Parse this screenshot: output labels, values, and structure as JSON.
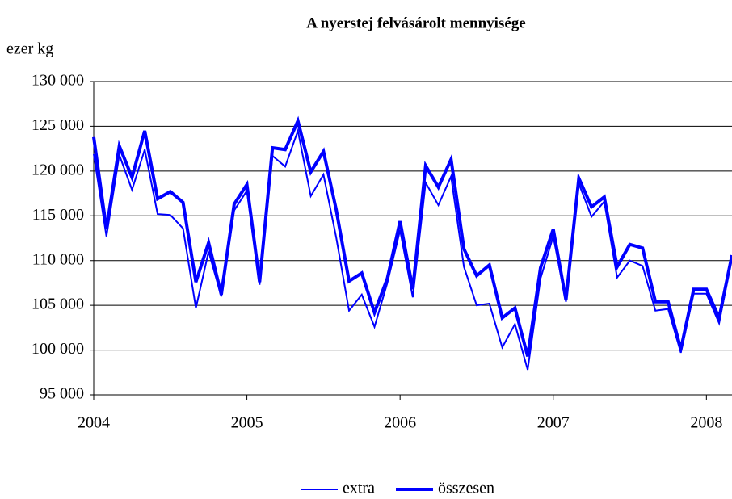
{
  "chart_data": {
    "type": "line",
    "title": "A nyerstej felvásárolt mennyisége",
    "ylabel": "ezer kg",
    "x": [
      2004,
      2004.083,
      2004.167,
      2004.25,
      2004.333,
      2004.417,
      2004.5,
      2004.583,
      2004.667,
      2004.75,
      2004.833,
      2004.917,
      2005,
      2005.083,
      2005.167,
      2005.25,
      2005.333,
      2005.417,
      2005.5,
      2005.583,
      2005.667,
      2005.75,
      2005.833,
      2005.917,
      2006,
      2006.083,
      2006.167,
      2006.25,
      2006.333,
      2006.417,
      2006.5,
      2006.583,
      2006.667,
      2006.75,
      2006.833,
      2006.917,
      2007,
      2007.083,
      2007.167,
      2007.25,
      2007.333,
      2007.417,
      2007.5,
      2007.583,
      2007.667,
      2007.75,
      2007.833,
      2007.917,
      2008,
      2008.083,
      2008.167
    ],
    "series": [
      {
        "name": "extra",
        "color": "#0000ff",
        "width": 2,
        "values": [
          121900,
          112700,
          121800,
          117900,
          122400,
          115200,
          115100,
          113600,
          104700,
          111000,
          106000,
          115600,
          117800,
          107300,
          121700,
          120500,
          124500,
          117200,
          119600,
          112600,
          104400,
          106200,
          102600,
          107500,
          113400,
          105900,
          118700,
          116200,
          119400,
          109300,
          105000,
          105200,
          100300,
          102900,
          97800,
          108000,
          112700,
          105400,
          118600,
          114900,
          116600,
          108100,
          110000,
          109400,
          104400,
          104600,
          99700,
          106300,
          106300,
          103000,
          110400
        ]
      },
      {
        "name": "összesen",
        "color": "#0000ff",
        "width": 4,
        "values": [
          123800,
          113500,
          122800,
          119300,
          124500,
          116900,
          117700,
          116500,
          107600,
          112000,
          106200,
          116300,
          118500,
          107600,
          122600,
          122400,
          125600,
          119900,
          122200,
          115700,
          107700,
          108600,
          104200,
          108000,
          114400,
          106800,
          120600,
          118200,
          121300,
          111300,
          108300,
          109500,
          103600,
          104700,
          99300,
          109200,
          113500,
          105600,
          119200,
          116000,
          117100,
          109300,
          111800,
          111400,
          105400,
          105400,
          100100,
          106800,
          106800,
          103600,
          110600
        ]
      }
    ],
    "xlim": [
      2004,
      2008.167
    ],
    "xticks": [
      2004,
      2005,
      2006,
      2007,
      2008
    ],
    "ylim": [
      95000,
      130000
    ],
    "yticks": [
      {
        "value": 95000,
        "label": "95 000"
      },
      {
        "value": 100000,
        "label": "100 000"
      },
      {
        "value": 105000,
        "label": "105 000"
      },
      {
        "value": 110000,
        "label": "110 000"
      },
      {
        "value": 115000,
        "label": "115 000"
      },
      {
        "value": 120000,
        "label": "120 000"
      },
      {
        "value": 125000,
        "label": "125 000"
      },
      {
        "value": 130000,
        "label": "130 000"
      }
    ],
    "grid": true,
    "legend": "bottom"
  }
}
